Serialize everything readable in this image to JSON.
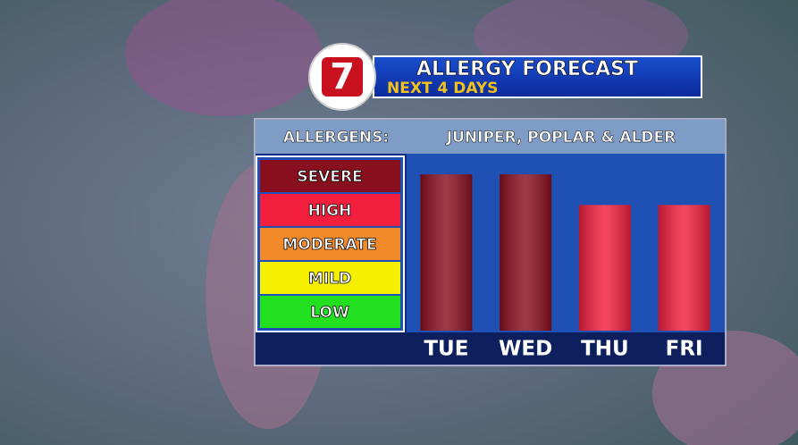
{
  "logo": "7",
  "chart_data": {
    "type": "bar",
    "title": "ALLERGY FORECAST",
    "subtitle": "NEXT 4 DAYS",
    "allergens_label": "ALLERGENS:",
    "allergens": "JUNIPER, POPLAR & ALDER",
    "levels": [
      {
        "name": "LOW",
        "color": "#22e020"
      },
      {
        "name": "MILD",
        "color": "#f4f000"
      },
      {
        "name": "MODERATE",
        "color": "#f28a2a"
      },
      {
        "name": "HIGH",
        "color": "#f41f3f"
      },
      {
        "name": "SEVERE",
        "color": "#8a0f1e"
      }
    ],
    "categories": [
      "TUE",
      "WED",
      "THU",
      "FRI"
    ],
    "values": [
      4.6,
      4.6,
      3.7,
      3.7
    ],
    "colors": [
      "#8a0f1e",
      "#8a0f1e",
      "#f41f3f",
      "#f41f3f"
    ],
    "ylim": [
      0,
      5
    ]
  }
}
